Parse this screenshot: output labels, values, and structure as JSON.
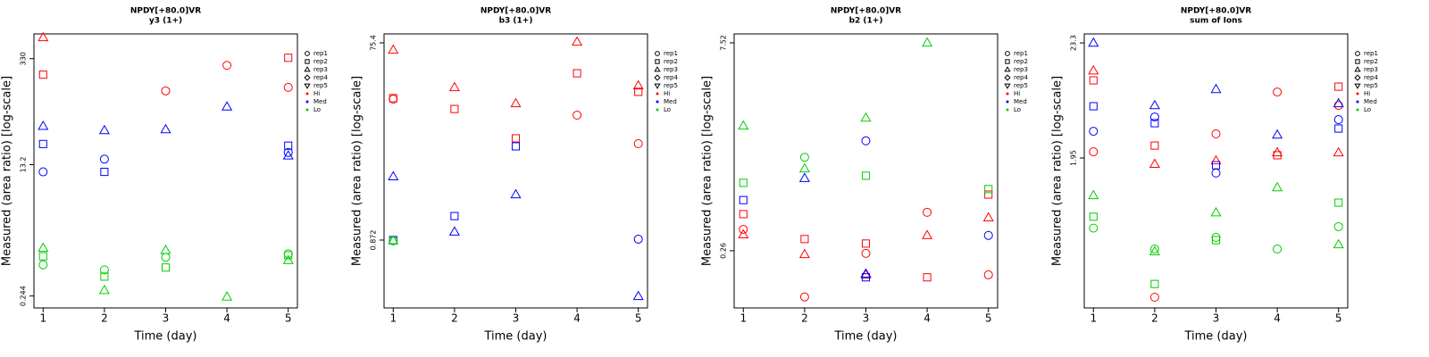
{
  "chart_data": [
    {
      "type": "scatter",
      "title": "NPDY[+80.0]VR",
      "subtitle": "y3 (1+)",
      "y_label": "Measured (area ratio) [log-scale]",
      "x_label": "Time (day)",
      "log_y": true,
      "xlim": [
        0.85,
        5.15
      ],
      "xticks": [
        1,
        2,
        3,
        4,
        5
      ],
      "ylim": [
        0.17,
        700
      ],
      "yticks": [
        0.244,
        13.2,
        330
      ],
      "legend": {
        "position": "right",
        "markers": [
          "rep1",
          "rep2",
          "rep3",
          "rep4",
          "rep5"
        ],
        "shapes": [
          "circle",
          "square",
          "triangle",
          "diamond",
          "triangle-down"
        ]
      },
      "groups": [
        {
          "name": "Hi",
          "color": "#ff0000",
          "reps": [
            {
              "x": [
                3,
                4,
                5
              ],
              "values": [
                124,
                269,
                138
              ]
            },
            {
              "x": [
                1,
                5
              ],
              "values": [
                203,
                339
              ]
            },
            {
              "x": [
                1
              ],
              "values": [
                627
              ]
            }
          ]
        },
        {
          "name": "Med",
          "color": "#0000ff",
          "reps": [
            {
              "x": [
                1,
                2,
                5
              ],
              "values": [
                10.6,
                15.6,
                19.1
              ]
            },
            {
              "x": [
                1,
                2,
                5
              ],
              "values": [
                24.7,
                10.6,
                23.5
              ]
            },
            {
              "x": [
                1,
                2,
                3,
                4,
                5
              ],
              "values": [
                42.4,
                37.3,
                38.3,
                76.4,
                17.3
              ]
            }
          ]
        },
        {
          "name": "Lo",
          "color": "#00cd00",
          "reps": [
            {
              "x": [
                1,
                2,
                3,
                5
              ],
              "values": [
                0.63,
                0.54,
                0.79,
                0.88
              ]
            },
            {
              "x": [
                1,
                2,
                3,
                5
              ],
              "values": [
                0.815,
                0.44,
                0.58,
                0.84
              ]
            },
            {
              "x": [
                1,
                2,
                3,
                4,
                5
              ],
              "values": [
                1.05,
                0.29,
                0.98,
                0.238,
                0.72
              ]
            }
          ]
        }
      ]
    },
    {
      "type": "scatter",
      "title": "NPDY[+80.0]VR",
      "subtitle": "b3 (1+)",
      "y_label": "Measured (area ratio) [log-scale]",
      "x_label": "Time (day)",
      "log_y": true,
      "xlim": [
        0.85,
        5.15
      ],
      "xticks": [
        1,
        2,
        3,
        4,
        5
      ],
      "ylim": [
        0.188,
        92.3
      ],
      "yticks": [
        0.872,
        75.4
      ],
      "legend": {
        "position": "right",
        "markers": [
          "rep1",
          "rep2",
          "rep3",
          "rep4",
          "rep5"
        ],
        "shapes": [
          "circle",
          "square",
          "triangle",
          "diamond",
          "triangle-down"
        ]
      },
      "groups": [
        {
          "name": "Hi",
          "color": "#ff0000",
          "reps": [
            {
              "x": [
                1,
                4,
                5
              ],
              "values": [
                21.1,
                14.7,
                7.71
              ]
            },
            {
              "x": [
                1,
                2,
                3,
                4,
                5
              ],
              "values": [
                21.6,
                16.9,
                8.7,
                37.9,
                24.9
              ]
            },
            {
              "x": [
                1,
                2,
                3,
                4,
                5
              ],
              "values": [
                64.2,
                27.5,
                19.1,
                76.9,
                28.6
              ]
            }
          ]
        },
        {
          "name": "Med",
          "color": "#0000ff",
          "reps": [
            {
              "x": [
                5
              ],
              "values": [
                0.89
              ]
            },
            {
              "x": [
                1,
                2,
                3
              ],
              "values": [
                0.872,
                1.5,
                7.26
              ]
            },
            {
              "x": [
                1,
                2,
                3,
                5
              ],
              "values": [
                3.66,
                1.05,
                2.44,
                0.244
              ]
            }
          ]
        },
        {
          "name": "Lo",
          "color": "#00cd00",
          "reps": [
            {
              "x": [
                1
              ],
              "values": [
                0.855
              ]
            },
            {
              "x": [],
              "values": []
            },
            {
              "x": [
                1
              ],
              "values": [
                0.86
              ]
            }
          ]
        }
      ]
    },
    {
      "type": "scatter",
      "title": "NPDY[+80.0]VR",
      "subtitle": "b2 (1+)",
      "y_label": "Measured (area ratio) [log-scale]",
      "x_label": "Time (day)",
      "log_y": true,
      "xlim": [
        0.85,
        5.15
      ],
      "xticks": [
        1,
        2,
        3,
        4,
        5
      ],
      "ylim": [
        0.103,
        8.69
      ],
      "yticks": [
        0.26,
        7.52
      ],
      "legend": {
        "position": "right",
        "markers": [
          "rep1",
          "rep2",
          "rep3",
          "rep4",
          "rep5"
        ],
        "shapes": [
          "circle",
          "square",
          "triangle",
          "diamond",
          "triangle-down"
        ]
      },
      "groups": [
        {
          "name": "Hi",
          "color": "#ff0000",
          "reps": [
            {
              "x": [
                1,
                2,
                3,
                4,
                5
              ],
              "values": [
                0.367,
                0.123,
                0.249,
                0.484,
                0.176
              ]
            },
            {
              "x": [
                1,
                2,
                3,
                4,
                5
              ],
              "values": [
                0.47,
                0.314,
                0.292,
                0.169,
                0.645
              ]
            },
            {
              "x": [
                1,
                2,
                3,
                4,
                5
              ],
              "values": [
                0.337,
                0.245,
                0.176,
                0.333,
                0.444
              ]
            }
          ]
        },
        {
          "name": "Med",
          "color": "#0000ff",
          "reps": [
            {
              "x": [
                3,
                5
              ],
              "values": [
                1.54,
                0.333
              ]
            },
            {
              "x": [
                1,
                3
              ],
              "values": [
                0.59,
                0.169
              ]
            },
            {
              "x": [
                2,
                3
              ],
              "values": [
                0.84,
                0.179
              ]
            }
          ]
        },
        {
          "name": "Lo",
          "color": "#00cd00",
          "reps": [
            {
              "x": [
                2
              ],
              "values": [
                1.18
              ]
            },
            {
              "x": [
                1,
                3,
                5
              ],
              "values": [
                0.78,
                0.875,
                0.705
              ]
            },
            {
              "x": [
                1,
                2,
                3,
                4
              ],
              "values": [
                1.96,
                0.98,
                2.23,
                7.52
              ]
            }
          ]
        }
      ]
    },
    {
      "type": "scatter",
      "title": "NPDY[+80.0]VR",
      "subtitle": "sum of Ions",
      "y_label": "Measured (area ratio) [log-scale]",
      "x_label": "Time (day)",
      "log_y": true,
      "xlim": [
        0.85,
        5.15
      ],
      "xticks": [
        1,
        2,
        3,
        4,
        5
      ],
      "ylim": [
        0.077,
        28.3
      ],
      "yticks": [
        1.95,
        23.3
      ],
      "legend": {
        "position": "right",
        "markers": [
          "rep1",
          "rep2",
          "rep3",
          "rep4",
          "rep5"
        ],
        "shapes": [
          "circle",
          "square",
          "triangle",
          "diamond",
          "triangle-down"
        ]
      },
      "groups": [
        {
          "name": "Hi",
          "color": "#ff0000",
          "reps": [
            {
              "x": [
                1,
                2,
                3,
                4,
                5
              ],
              "values": [
                2.23,
                0.097,
                3.28,
                8.09,
                6.06
              ]
            },
            {
              "x": [
                1,
                2,
                4,
                5
              ],
              "values": [
                10.4,
                2.55,
                2.07,
                9.08
              ]
            },
            {
              "x": [
                1,
                2,
                3,
                4,
                5
              ],
              "values": [
                12.8,
                1.71,
                1.84,
                2.19,
                2.19
              ]
            }
          ]
        },
        {
          "name": "Med",
          "color": "#0000ff",
          "reps": [
            {
              "x": [
                1,
                2,
                3,
                5
              ],
              "values": [
                3.47,
                4.72,
                1.41,
                4.46
              ]
            },
            {
              "x": [
                1,
                2,
                3,
                5
              ],
              "values": [
                5.95,
                4.13,
                1.67,
                3.68
              ]
            },
            {
              "x": [
                1,
                2,
                3,
                4,
                5
              ],
              "values": [
                23.3,
                6.06,
                8.57,
                3.21,
                6.3
              ]
            }
          ]
        },
        {
          "name": "Lo",
          "color": "#00cd00",
          "reps": [
            {
              "x": [
                1,
                2,
                3,
                4,
                5
              ],
              "values": [
                0.43,
                0.274,
                0.352,
                0.274,
                0.444
              ]
            },
            {
              "x": [
                1,
                2,
                3,
                5
              ],
              "values": [
                0.55,
                0.129,
                0.332,
                0.745
              ]
            },
            {
              "x": [
                1,
                2,
                3,
                4,
                5
              ],
              "values": [
                0.87,
                0.259,
                0.6,
                1.03,
                0.302
              ]
            }
          ]
        }
      ]
    }
  ]
}
